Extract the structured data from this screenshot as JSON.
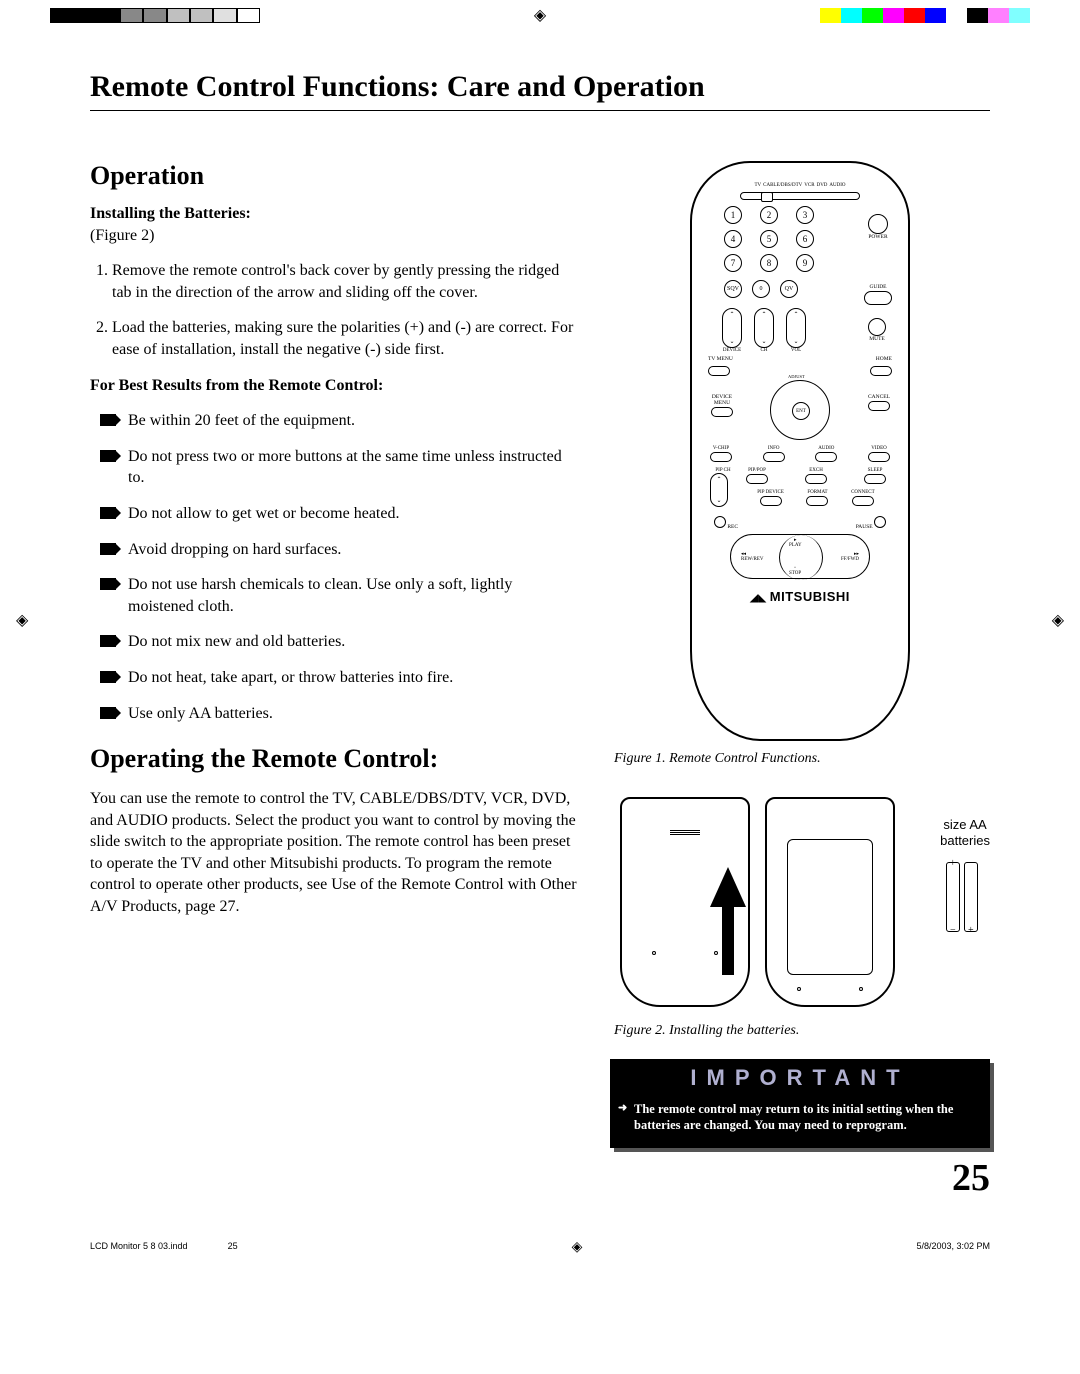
{
  "colorBars": {
    "left": [
      "#000000",
      "#000000",
      "#000000",
      "#888888",
      "#888888",
      "#c0c0c0",
      "#c0c0c0",
      "#e0e0e0",
      "#ffffff"
    ],
    "right": [
      "#ffff00",
      "#00ffff",
      "#00ff00",
      "#ff00ff",
      "#ff0000",
      "#0000ff",
      "#ffffff",
      "#000000",
      "#ff80ff",
      "#80ffff"
    ]
  },
  "title": "Remote Control Functions: Care and Operation",
  "section1": {
    "heading": "Operation",
    "sub1_bold": "Installing the Batteries:",
    "sub1_ref": "(Figure 2)",
    "steps": [
      "Remove the remote control's back cover by gently pressing the ridged tab in the direction of the arrow and sliding off the cover.",
      "Load the batteries, making sure the polarities (+) and  (-) are correct.  For ease of installation, install the negative (-) side first."
    ],
    "sub2_bold": "For Best Results from the Remote Control:",
    "bullets": [
      "Be within 20 feet of the equipment.",
      "Do not press two or more buttons at the same time unless instructed to.",
      "Do not allow to get wet or become heated.",
      "Avoid dropping on hard surfaces.",
      "Do not use harsh chemicals to clean.  Use only a soft, lightly moistened cloth.",
      "Do not mix new and old batteries.",
      "Do not heat, take apart, or throw batteries into fire.",
      "Use only AA batteries."
    ]
  },
  "section2": {
    "heading": "Operating the Remote Control:",
    "body": "You can use the remote to control the TV, CABLE/DBS/DTV, VCR, DVD, and AUDIO  products.  Select the product you want to control by moving the slide switch to the appropriate position.  The remote control has been preset to operate the TV and other Mitsubishi products.  To program the remote control to operate other products, see Use of the Remote Control with Other A/V Products, page 27."
  },
  "remote": {
    "sliderLabels": [
      "TV",
      "CABLE/DBS/DTV",
      "VCR",
      "DVD",
      "AUDIO"
    ],
    "numpad": [
      "1",
      "2",
      "3",
      "4",
      "5",
      "6",
      "7",
      "8",
      "9"
    ],
    "bottomRow": [
      "SQV",
      "0",
      "QV"
    ],
    "power": "POWER",
    "guide": "GUIDE",
    "rockers": [
      "DEVICE",
      "CH",
      "VOL"
    ],
    "mute": "MUTE",
    "tvMenu": "TV MENU",
    "home": "HOME",
    "deviceMenu": "DEVICE MENU",
    "cancel": "CANCEL",
    "ent": "ENT",
    "adjust": "ADJUST",
    "row1": [
      "V-CHIP",
      "INFO",
      "AUDIO",
      "VIDEO"
    ],
    "row2": [
      "PIP CH",
      "PIP/POP",
      "EXCH",
      "SLEEP"
    ],
    "row3": [
      "PIP DEVICE",
      "FORMAT",
      "CONNECT"
    ],
    "rec": "REC",
    "pause": "PAUSE",
    "transport": {
      "play": "PLAY",
      "stop": "STOP",
      "rew": "REW/REV",
      "ff": "FF/FWD"
    },
    "brand": "MITSUBISHI"
  },
  "fig1_caption": "Figure 1.  Remote Control Functions.",
  "fig2": {
    "caption": "Figure 2.  Installing the batteries.",
    "batLabel1": "size AA",
    "batLabel2": "batteries"
  },
  "important": {
    "title": "IMPORTANT",
    "body": "The remote control may return to its initial setting when the batteries are changed.  You may need to reprogram."
  },
  "pageNumber": "25",
  "footer": {
    "left": "LCD Monitor 5 8 03.indd",
    "leftPage": "25",
    "right": "5/8/2003, 3:02 PM"
  }
}
